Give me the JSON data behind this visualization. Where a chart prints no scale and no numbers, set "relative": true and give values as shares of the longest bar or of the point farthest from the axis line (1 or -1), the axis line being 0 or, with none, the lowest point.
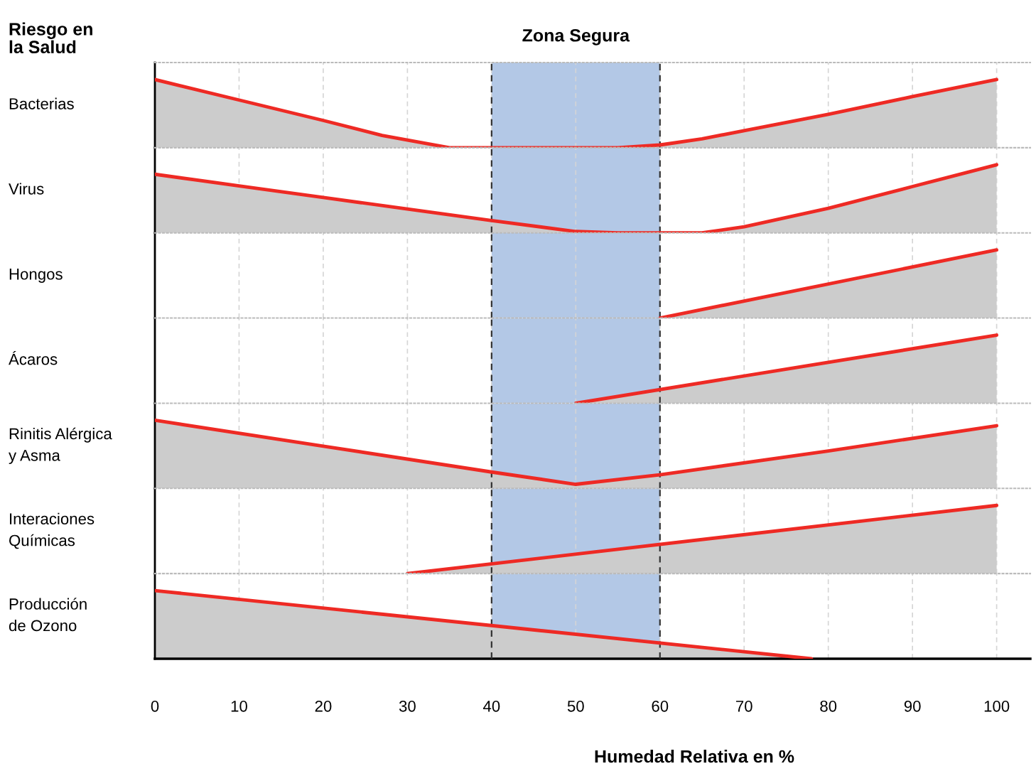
{
  "chart_data": [
    {
      "type": "area",
      "title": "Riesgo en\nla Salud",
      "ylabel": "Bacterias",
      "relative": true,
      "x": [
        0,
        10,
        20,
        27,
        35,
        45,
        55,
        60,
        65,
        70,
        80,
        90,
        100
      ],
      "series": [
        {
          "color": "#ee2a24",
          "values": [
            1,
            0.7,
            0.4,
            0.18,
            0,
            0,
            0,
            0.04,
            0.13,
            0.25,
            0.49,
            0.75,
            1
          ]
        }
      ],
      "xlim": [
        0,
        104
      ],
      "xticks": [
        0,
        10,
        20,
        30,
        40,
        50,
        60,
        70,
        80,
        90,
        100
      ],
      "tick_labels": false,
      "grid": "x",
      "bands": [
        {
          "axis": "x",
          "from": 40,
          "to": 60,
          "label": "Zona Segura",
          "color": "#b3c8e6"
        }
      ]
    },
    {
      "type": "area",
      "ylabel": "Virus",
      "relative": true,
      "x": [
        0,
        10,
        20,
        30,
        40,
        50,
        55,
        65,
        70,
        80,
        90,
        100
      ],
      "series": [
        {
          "color": "#ee2a24",
          "values": [
            0.86,
            0.69,
            0.52,
            0.35,
            0.18,
            0.02,
            0,
            0,
            0.09,
            0.36,
            0.68,
            1
          ]
        }
      ],
      "xlim": [
        0,
        104
      ],
      "xticks": [
        0,
        10,
        20,
        30,
        40,
        50,
        60,
        70,
        80,
        90,
        100
      ],
      "tick_labels": false,
      "grid": "x",
      "bands": [
        {
          "axis": "x",
          "from": 40,
          "to": 60,
          "color": "#b3c8e6"
        }
      ]
    },
    {
      "type": "area",
      "ylabel": "Hongos",
      "relative": true,
      "x": [
        60,
        100
      ],
      "series": [
        {
          "color": "#ee2a24",
          "values": [
            0,
            1
          ]
        }
      ],
      "xlim": [
        0,
        104
      ],
      "xticks": [
        0,
        10,
        20,
        30,
        40,
        50,
        60,
        70,
        80,
        90,
        100
      ],
      "tick_labels": false,
      "grid": "x",
      "bands": [
        {
          "axis": "x",
          "from": 40,
          "to": 60,
          "color": "#b3c8e6"
        }
      ]
    },
    {
      "type": "area",
      "ylabel": "Ácaros",
      "relative": true,
      "x": [
        50,
        100
      ],
      "series": [
        {
          "color": "#ee2a24",
          "values": [
            0,
            1
          ]
        }
      ],
      "xlim": [
        0,
        104
      ],
      "xticks": [
        0,
        10,
        20,
        30,
        40,
        50,
        60,
        70,
        80,
        90,
        100
      ],
      "tick_labels": false,
      "grid": "x",
      "bands": [
        {
          "axis": "x",
          "from": 40,
          "to": 60,
          "color": "#b3c8e6"
        }
      ]
    },
    {
      "type": "area",
      "ylabel": "Rinitis Alérgica\ny Asma",
      "relative": true,
      "x": [
        0,
        20,
        40,
        50,
        60,
        80,
        100
      ],
      "series": [
        {
          "color": "#ee2a24",
          "values": [
            1,
            0.62,
            0.24,
            0.06,
            0.2,
            0.55,
            0.92
          ]
        }
      ],
      "xlim": [
        0,
        104
      ],
      "xticks": [
        0,
        10,
        20,
        30,
        40,
        50,
        60,
        70,
        80,
        90,
        100
      ],
      "tick_labels": false,
      "grid": "x",
      "bands": [
        {
          "axis": "x",
          "from": 40,
          "to": 60,
          "color": "#b3c8e6"
        }
      ]
    },
    {
      "type": "area",
      "ylabel": "Interaciones\nQuímicas",
      "relative": true,
      "x": [
        30,
        100
      ],
      "series": [
        {
          "color": "#ee2a24",
          "values": [
            0,
            1
          ]
        }
      ],
      "xlim": [
        0,
        104
      ],
      "xticks": [
        0,
        10,
        20,
        30,
        40,
        50,
        60,
        70,
        80,
        90,
        100
      ],
      "tick_labels": false,
      "grid": "x",
      "bands": [
        {
          "axis": "x",
          "from": 40,
          "to": 60,
          "color": "#b3c8e6"
        }
      ]
    },
    {
      "type": "area",
      "ylabel": "Producción\nde Ozono",
      "xlabel": "Humedad Relativa en %",
      "relative": true,
      "x": [
        0,
        78
      ],
      "series": [
        {
          "color": "#ee2a24",
          "values": [
            1,
            0
          ]
        }
      ],
      "xlim": [
        0,
        104
      ],
      "xticks": [
        0,
        10,
        20,
        30,
        40,
        50,
        60,
        70,
        80,
        90,
        100
      ],
      "tick_labels": "x",
      "grid": "x",
      "bands": [
        {
          "axis": "x",
          "from": 40,
          "to": 60,
          "color": "#b3c8e6"
        }
      ]
    }
  ]
}
